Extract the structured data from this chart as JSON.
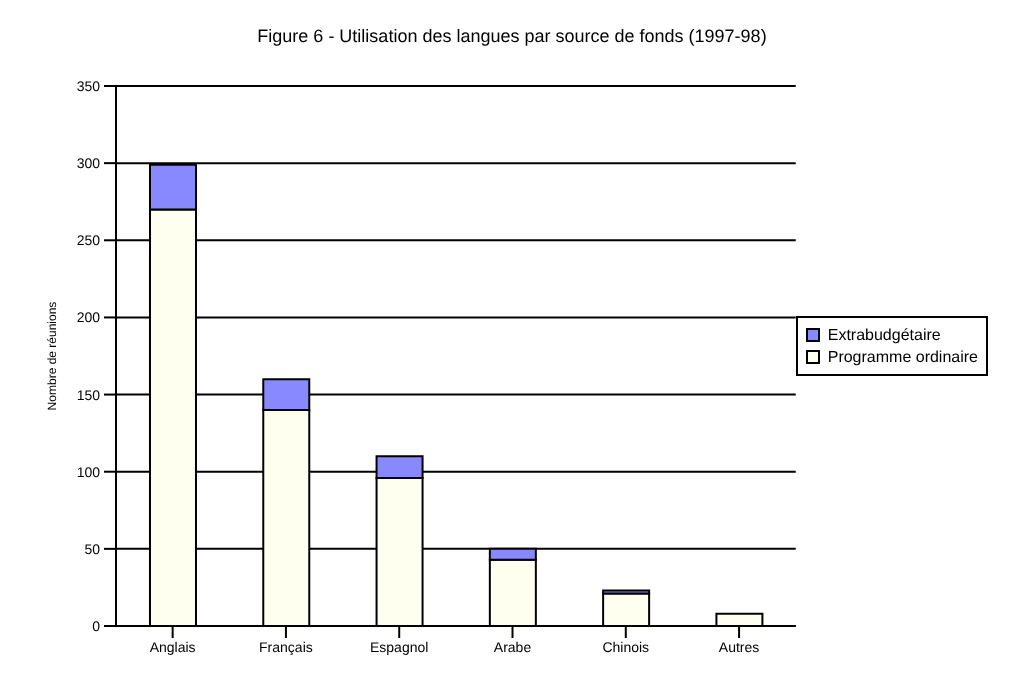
{
  "chart_data": {
    "type": "bar",
    "title": "Figure 6 - Utilisation des langues par source de fonds (1997-98)",
    "ylabel": "Nombre de réunions",
    "categories": [
      "Anglais",
      "Français",
      "Espagnol",
      "Arabe",
      "Chinois",
      "Autres"
    ],
    "stacked": true,
    "series": [
      {
        "name": "Programme ordinaire",
        "color": "#fffff0",
        "values": [
          270,
          140,
          96,
          43,
          21,
          8
        ]
      },
      {
        "name": "Extrabudgétaire",
        "color": "#8888ff",
        "values": [
          29,
          20,
          14,
          7,
          2,
          null
        ]
      }
    ],
    "ylim": [
      0,
      350
    ],
    "yticks": [
      0,
      50,
      100,
      150,
      200,
      250,
      300,
      350
    ],
    "grid": "y",
    "legend": "right"
  }
}
